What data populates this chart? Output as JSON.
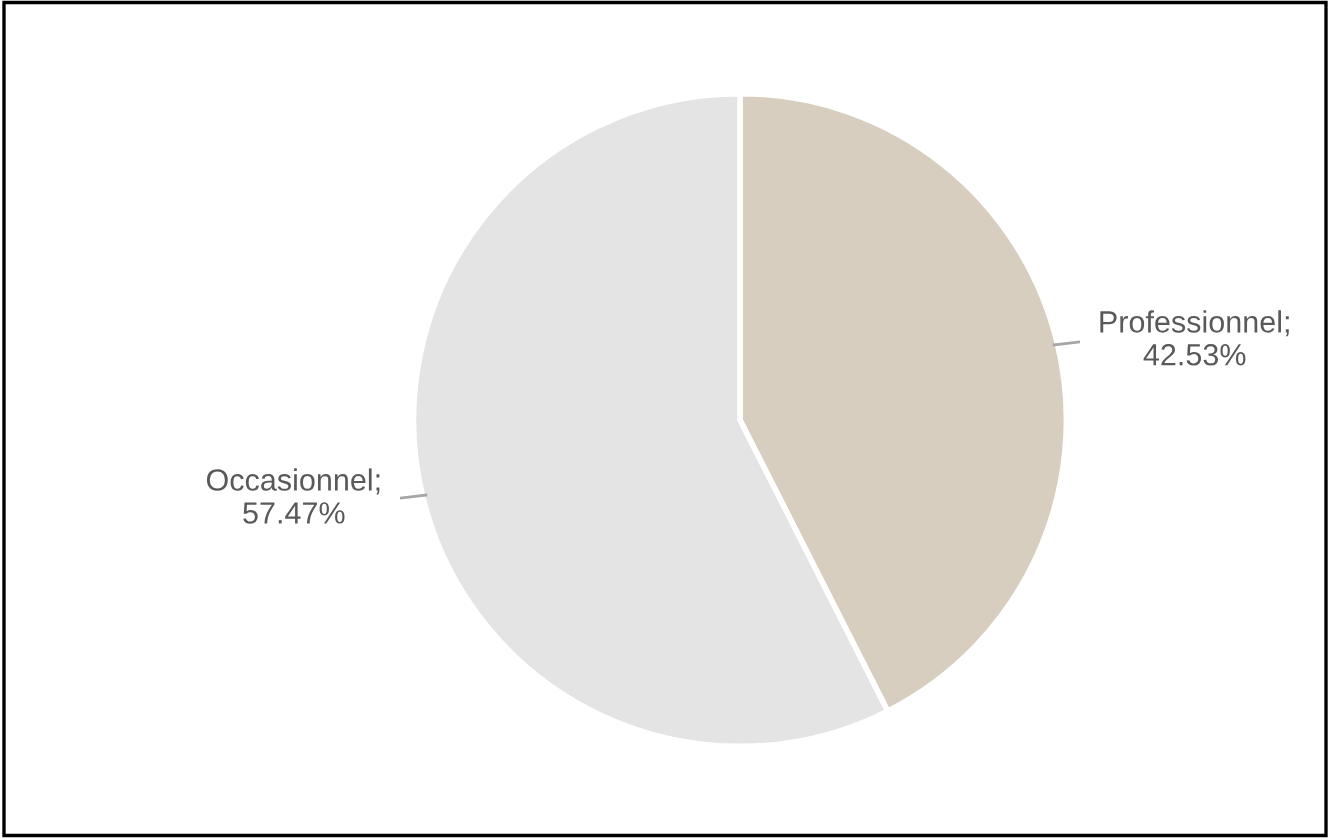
{
  "chart_data": {
    "type": "pie",
    "categories": [
      "Professionnel",
      "Occasionnel"
    ],
    "values": [
      42.53,
      57.47
    ],
    "value_labels": [
      "; 42.53%",
      "; 57.47%"
    ],
    "colors": [
      "#d8cebf",
      "#e4e4e4"
    ],
    "legend": false
  }
}
